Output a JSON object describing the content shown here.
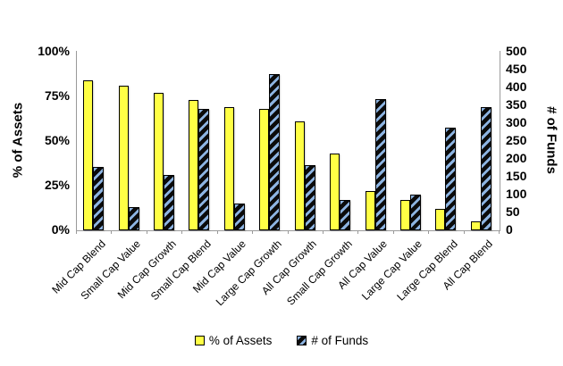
{
  "chart_data": {
    "type": "bar",
    "title": "",
    "grid": false,
    "legend_position": "bottom",
    "categories": [
      "Mid Cap Blend",
      "Small Cap Value",
      "Mid Cap Growth",
      "Small Cap Blend",
      "Mid Cap Value",
      "Large Cap Growth",
      "All Cap Growth",
      "Small Cap Growth",
      "All Cap Value",
      "Large Cap Value",
      "Large Cap Blend",
      "All Cap Blend"
    ],
    "series": [
      {
        "name": "% of Assets",
        "axis": "left",
        "unit": "%",
        "values": [
          84,
          81,
          77,
          73,
          69,
          68,
          61,
          43,
          22,
          17,
          12,
          5
        ],
        "fill_color": "#FFFF45",
        "border_color": "#000000",
        "pattern": "solid"
      },
      {
        "name": "# of Funds",
        "axis": "right",
        "unit": "funds",
        "values": [
          178,
          64,
          154,
          340,
          74,
          438,
          182,
          85,
          368,
          100,
          288,
          345
        ],
        "fill_color": "#0b0b0b",
        "stripe_color": "#8DB4E2",
        "border_color": "#000000",
        "pattern": "diagonal-stripes"
      }
    ],
    "left_axis": {
      "label": "% of Assets",
      "min": 0,
      "max": 100,
      "tick_labels": [
        "100%",
        "75%",
        "50%",
        "25%",
        "0%"
      ]
    },
    "right_axis": {
      "label": "# of Funds",
      "min": 0,
      "max": 500,
      "tick_labels": [
        "500",
        "450",
        "400",
        "350",
        "300",
        "250",
        "200",
        "150",
        "100",
        "50",
        "0"
      ]
    },
    "axis_line_color": "#9a9a9a"
  }
}
